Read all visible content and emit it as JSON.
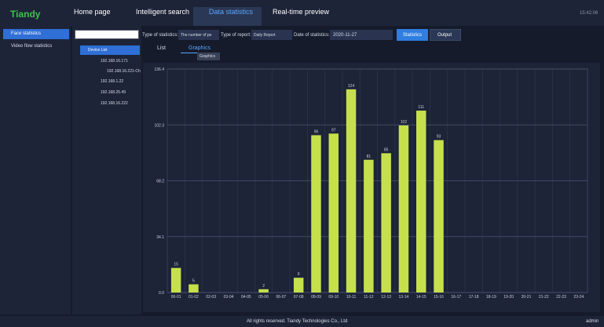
{
  "header": {
    "logo": "Tiandy",
    "tabs": [
      "Home page",
      "Intelligent search",
      "Data statistics",
      "Real-time preview"
    ],
    "time": "15:42:06"
  },
  "sidebar": [
    "Face statistics",
    "Video flow statistics"
  ],
  "tree": {
    "root": "Device List",
    "items": [
      "192.168.16.171",
      "192.168.16.221-Ch",
      "192.168.1.22",
      "192.168.25.49",
      "192.168.16.222"
    ]
  },
  "toolbar": {
    "stat_label": "Type of statistics:",
    "stat_value": "The number of pe",
    "report_label": "Type of report:",
    "report_value": "Daily Report",
    "date_label": "Date of statistics:",
    "date_value": "2020-11-27",
    "buttons": [
      "Statistics",
      "Output"
    ]
  },
  "view_tabs": [
    "List",
    "Graphics"
  ],
  "tooltip": "Graphics",
  "footer": {
    "copyright": "All rights reserved. Tiandy Technologies Co., Ltd",
    "user": "admin"
  },
  "chart_data": {
    "type": "bar",
    "color": "#c6e04c",
    "grid": true,
    "categories": [
      "00-01",
      "01-02",
      "02-03",
      "03-04",
      "04-05",
      "05-06",
      "06-07",
      "07-08",
      "08-09",
      "09-10",
      "10-11",
      "11-12",
      "12-13",
      "13-14",
      "14-15",
      "15-16",
      "16-17",
      "17-18",
      "18-19",
      "19-20",
      "20-21",
      "21-22",
      "22-23",
      "23-24"
    ],
    "values": [
      15,
      5,
      0,
      0,
      0,
      2,
      0,
      9,
      96,
      97,
      124,
      81,
      85,
      102,
      111,
      93,
      0,
      0,
      0,
      0,
      0,
      0,
      0,
      0
    ],
    "ylim": [
      0,
      136.4
    ],
    "yticks": [
      {
        "value": 0,
        "label": "0.0"
      },
      34.1,
      68.2,
      102.3,
      136.4
    ]
  }
}
